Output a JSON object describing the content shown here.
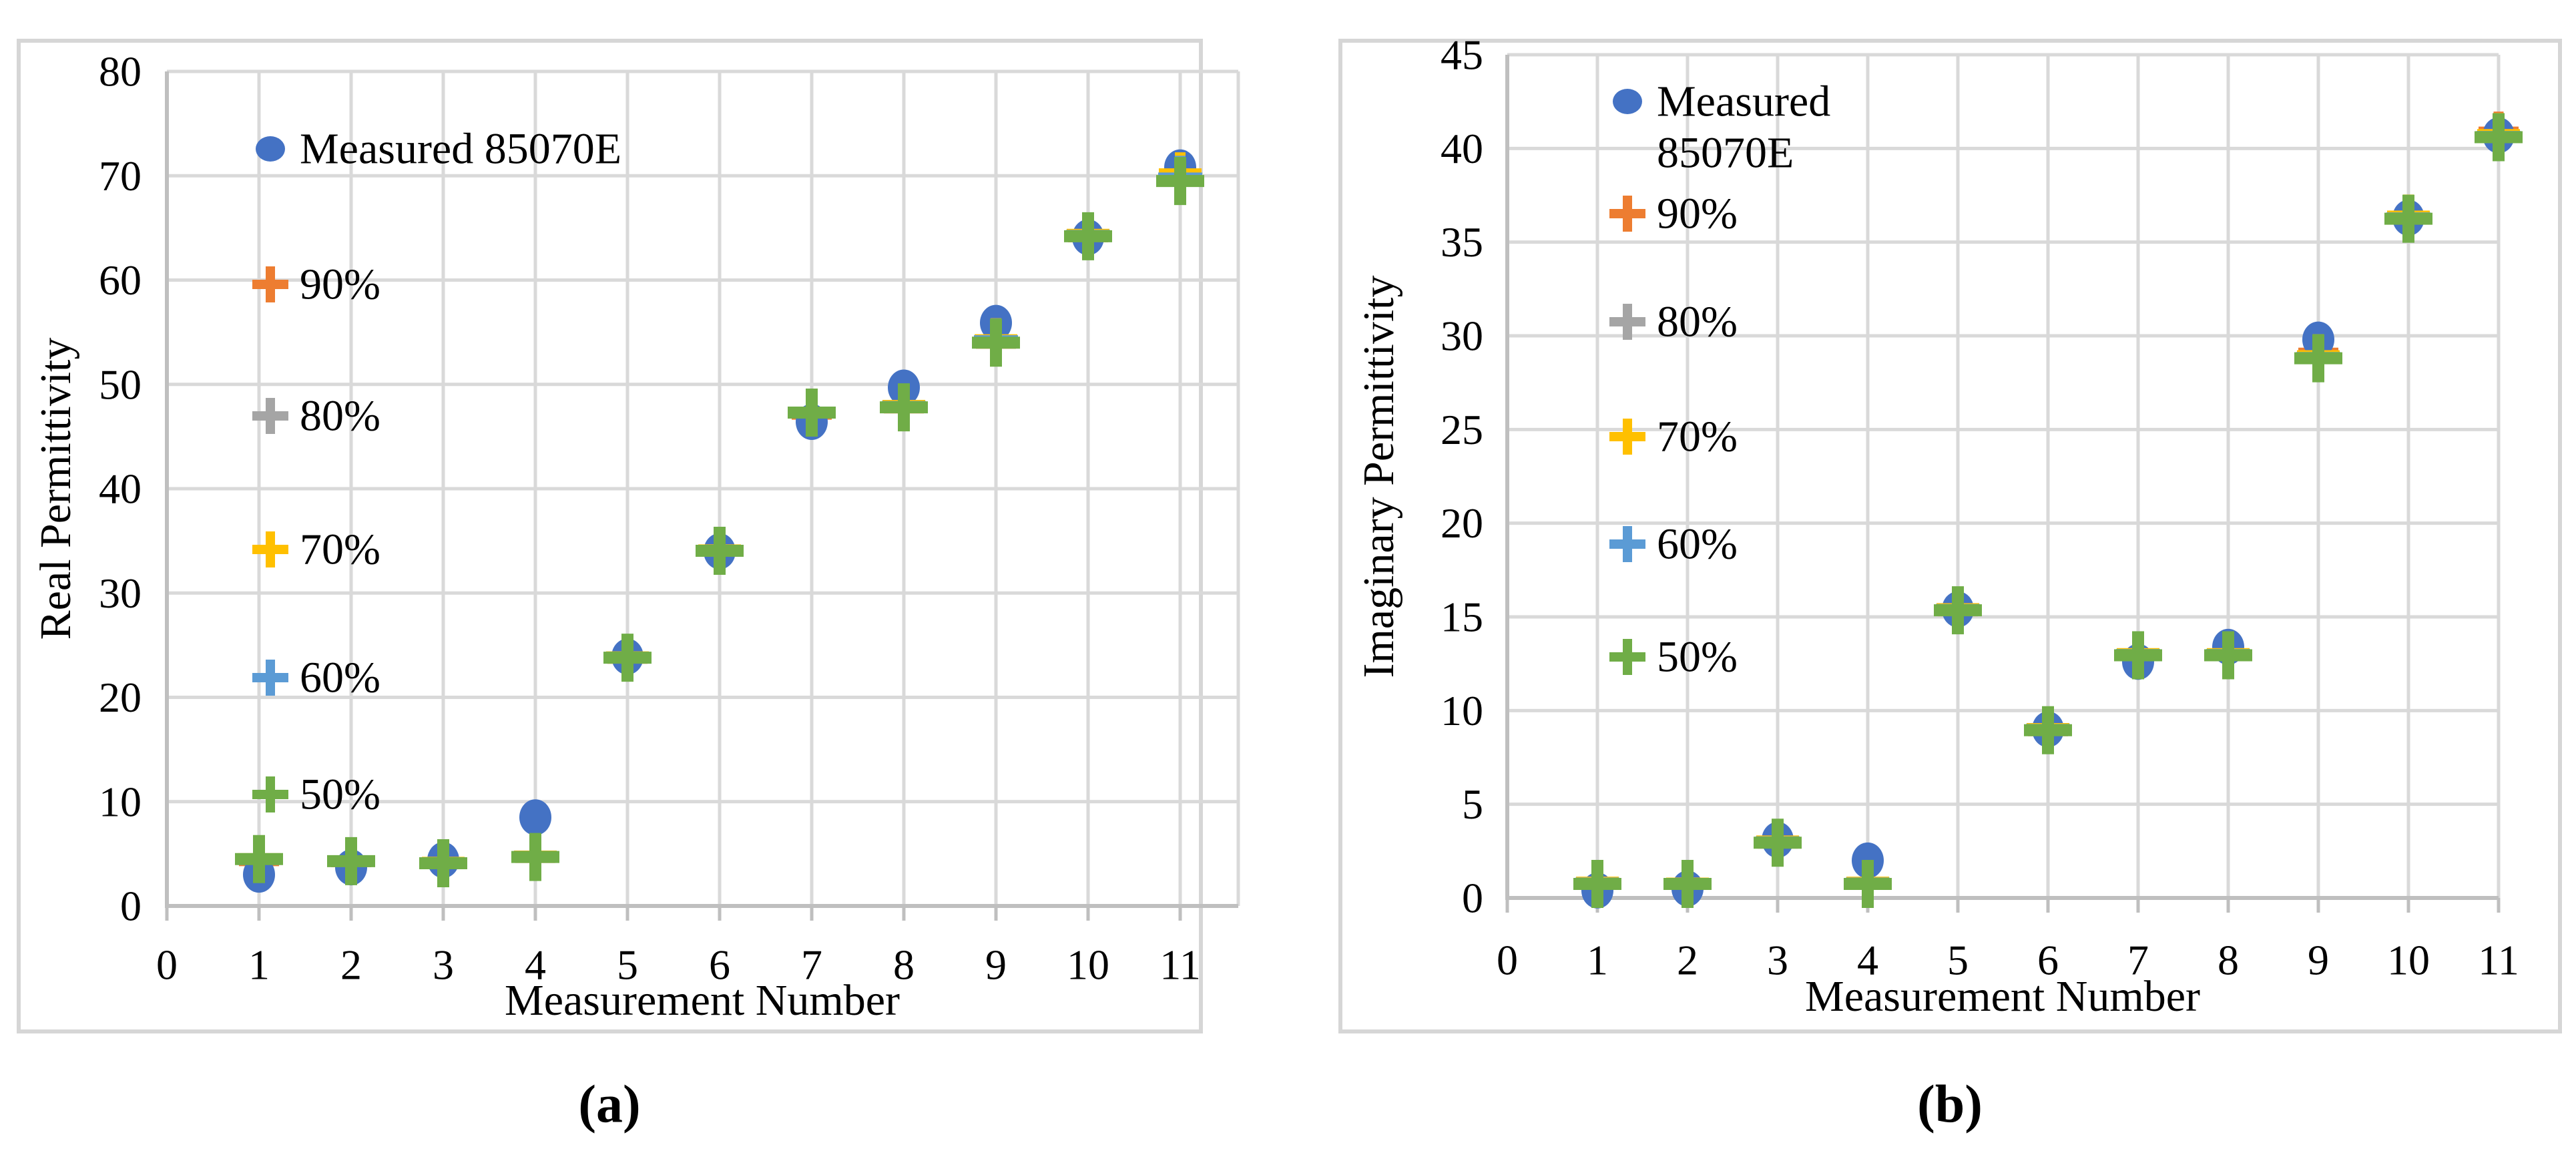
{
  "figure": {
    "colors": {
      "measured_blue": "#4472C4",
      "orange_90": "#ED7D31",
      "gray_80": "#A5A5A5",
      "gold_70": "#FFC000",
      "lightblue_60": "#5B9BD5",
      "green_50": "#70AD47",
      "gridline": "#D9D9D9",
      "axis": "#BFBFBF",
      "panel_border": "#D6D6D6",
      "background": "#FFFFFF",
      "text": "#000000"
    }
  },
  "chart_data": [
    {
      "type": "scatter",
      "panel_label": "(a)",
      "title": "",
      "xlabel": "Measurement Number",
      "ylabel": "Real Permittivity",
      "xlim": [
        0,
        11
      ],
      "ylim": [
        0,
        80
      ],
      "xticks": [
        0,
        1,
        2,
        3,
        4,
        5,
        6,
        7,
        8,
        9,
        10,
        11
      ],
      "yticks": [
        0,
        10,
        20,
        30,
        40,
        50,
        60,
        70,
        80
      ],
      "grid": true,
      "legend_position": "upper-left-inside",
      "x": [
        1,
        2,
        3,
        4,
        5,
        6,
        7,
        8,
        9,
        10,
        11
      ],
      "series": [
        {
          "name": "Measured 85070E",
          "marker": "circle",
          "color": "#4472C4",
          "values": [
            3.0,
            3.7,
            4.4,
            8.5,
            23.9,
            34.0,
            46.4,
            49.7,
            55.9,
            64.1,
            70.8
          ]
        },
        {
          "name": "90%",
          "marker": "plus",
          "color": "#ED7D31",
          "values": [
            4.3,
            4.2,
            4.0,
            4.6,
            23.7,
            34.0,
            47.1,
            47.7,
            53.9,
            64.1,
            69.9
          ]
        },
        {
          "name": "80%",
          "marker": "plus",
          "color": "#A5A5A5",
          "values": [
            4.4,
            4.3,
            4.1,
            4.7,
            23.8,
            34.1,
            47.2,
            47.9,
            54.1,
            64.2,
            69.7
          ]
        },
        {
          "name": "70%",
          "marker": "plus",
          "color": "#FFC000",
          "values": [
            4.55,
            4.35,
            4.2,
            4.8,
            23.9,
            34.15,
            47.35,
            48.0,
            54.3,
            64.4,
            70.2
          ]
        },
        {
          "name": "60%",
          "marker": "plus",
          "color": "#5B9BD5",
          "values": [
            4.45,
            4.3,
            4.15,
            4.75,
            23.85,
            34.1,
            47.25,
            47.9,
            54.2,
            64.3,
            69.8
          ]
        },
        {
          "name": "50%",
          "marker": "plus",
          "color": "#70AD47",
          "values": [
            4.5,
            4.3,
            4.1,
            4.7,
            23.8,
            34.05,
            47.3,
            47.8,
            54.0,
            64.2,
            69.5
          ]
        }
      ]
    },
    {
      "type": "scatter",
      "panel_label": "(b)",
      "title": "",
      "xlabel": "Measurement Number",
      "ylabel": "Imaginary Permittivity",
      "xlim": [
        0,
        11
      ],
      "ylim": [
        0,
        45
      ],
      "xticks": [
        0,
        1,
        2,
        3,
        4,
        5,
        6,
        7,
        8,
        9,
        10,
        11
      ],
      "yticks": [
        0,
        5,
        10,
        15,
        20,
        25,
        30,
        35,
        40,
        45
      ],
      "grid": true,
      "legend_position": "upper-left-inside",
      "x": [
        1,
        2,
        3,
        4,
        5,
        6,
        7,
        8,
        9,
        10,
        11
      ],
      "series": [
        {
          "name": "Measured 85070E",
          "legend_lines": [
            "Measured",
            "85070E"
          ],
          "marker": "circle",
          "color": "#4472C4",
          "values": [
            0.4,
            0.5,
            3.1,
            2.0,
            15.4,
            9.0,
            12.6,
            13.4,
            29.8,
            36.3,
            40.7
          ]
        },
        {
          "name": "90%",
          "marker": "plus",
          "color": "#ED7D31",
          "values": [
            0.7,
            0.7,
            2.9,
            0.7,
            15.3,
            8.9,
            12.9,
            12.9,
            29.1,
            36.2,
            40.9
          ]
        },
        {
          "name": "80%",
          "marker": "plus",
          "color": "#A5A5A5",
          "values": [
            0.75,
            0.75,
            2.95,
            0.75,
            15.35,
            8.95,
            12.95,
            12.95,
            28.9,
            36.3,
            40.7
          ]
        },
        {
          "name": "70%",
          "marker": "plus",
          "color": "#FFC000",
          "values": [
            0.85,
            0.8,
            3.05,
            0.85,
            15.45,
            9.05,
            13.05,
            13.05,
            28.95,
            36.4,
            40.75
          ]
        },
        {
          "name": "60%",
          "marker": "plus",
          "color": "#5B9BD5",
          "values": [
            0.8,
            0.78,
            3.0,
            0.8,
            15.4,
            9.0,
            13.0,
            13.0,
            28.85,
            36.3,
            40.65
          ]
        },
        {
          "name": "50%",
          "marker": "plus",
          "color": "#70AD47",
          "values": [
            0.75,
            0.75,
            2.95,
            0.75,
            15.35,
            8.95,
            12.95,
            12.95,
            28.8,
            36.25,
            40.6
          ]
        }
      ]
    }
  ]
}
